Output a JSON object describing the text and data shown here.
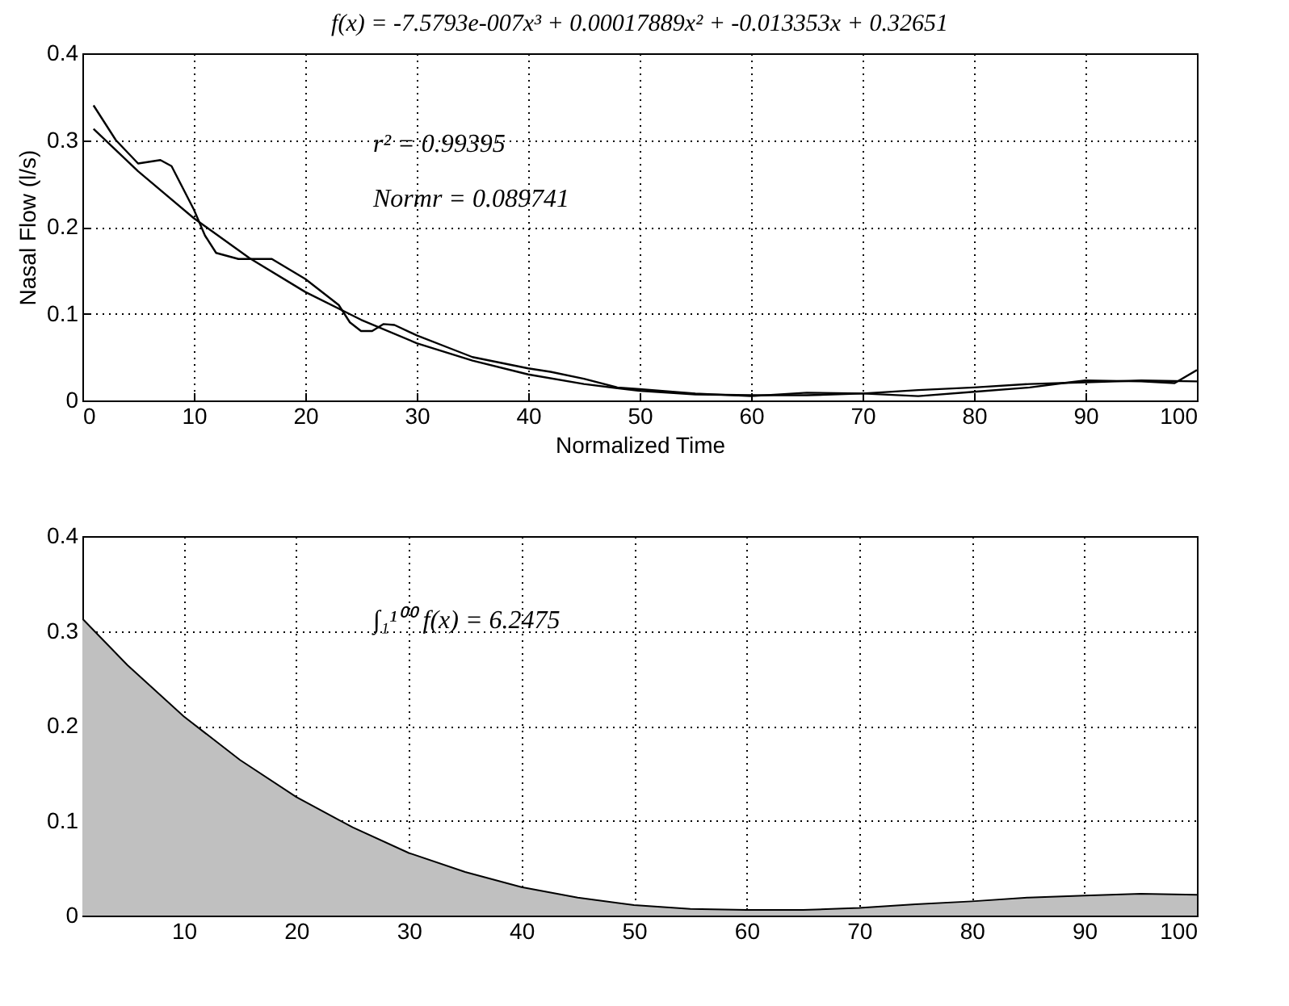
{
  "chart_data": [
    {
      "type": "line",
      "title": "f(x) = -7.5793e-007x³ + 0.00017889x² + -0.013353x + 0.32651",
      "xlabel": "Normalized Time",
      "ylabel": "Nasal Flow (l/s)",
      "xlim": [
        0,
        100
      ],
      "xticks": [
        0,
        10,
        20,
        30,
        40,
        50,
        60,
        70,
        80,
        90,
        100
      ],
      "ylim": [
        0,
        0.4
      ],
      "yticks": [
        0,
        0.1,
        0.2,
        0.3,
        0.4
      ],
      "grid": true,
      "annotations": [
        "r² = 0.99395",
        "Normr = 0.089741"
      ],
      "series": [
        {
          "color": "#000000",
          "x": [
            1,
            3,
            5,
            7,
            8,
            10,
            11,
            12,
            14,
            17,
            20,
            22,
            23,
            24,
            25,
            26,
            27,
            28,
            30,
            33,
            35,
            40,
            42,
            45,
            48,
            50,
            55,
            60,
            65,
            70,
            75,
            80,
            85,
            88,
            90,
            95,
            98,
            100
          ],
          "values": [
            0.34,
            0.3,
            0.273,
            0.277,
            0.27,
            0.22,
            0.19,
            0.17,
            0.163,
            0.163,
            0.14,
            0.12,
            0.11,
            0.09,
            0.08,
            0.08,
            0.088,
            0.087,
            0.075,
            0.06,
            0.05,
            0.037,
            0.033,
            0.025,
            0.015,
            0.013,
            0.008,
            0.005,
            0.009,
            0.008,
            0.005,
            0.01,
            0.015,
            0.02,
            0.023,
            0.022,
            0.02,
            0.035
          ]
        },
        {
          "color": "#000000",
          "x": [
            1,
            5,
            10,
            15,
            20,
            25,
            30,
            35,
            40,
            45,
            50,
            55,
            60,
            65,
            70,
            75,
            80,
            85,
            90,
            95,
            100
          ],
          "values": [
            0.313,
            0.264,
            0.21,
            0.164,
            0.125,
            0.093,
            0.066,
            0.046,
            0.03,
            0.019,
            0.011,
            0.007,
            0.006,
            0.006,
            0.008,
            0.012,
            0.015,
            0.019,
            0.021,
            0.023,
            0.022
          ]
        }
      ]
    },
    {
      "type": "area",
      "xlim": [
        1,
        100
      ],
      "xticks": [
        10,
        20,
        30,
        40,
        50,
        60,
        70,
        80,
        90,
        100
      ],
      "ylim": [
        0,
        0.4
      ],
      "yticks": [
        0,
        0.1,
        0.2,
        0.3,
        0.4
      ],
      "grid": true,
      "annotations": [
        "∫₁¹⁰⁰ f(x) = 6.2475"
      ],
      "color": "#c0c0c0",
      "x": [
        1,
        5,
        10,
        15,
        20,
        25,
        30,
        35,
        40,
        45,
        50,
        55,
        60,
        65,
        70,
        75,
        80,
        85,
        90,
        95,
        100
      ],
      "values": [
        0.313,
        0.264,
        0.21,
        0.164,
        0.125,
        0.093,
        0.066,
        0.046,
        0.03,
        0.019,
        0.011,
        0.007,
        0.006,
        0.006,
        0.008,
        0.012,
        0.015,
        0.019,
        0.021,
        0.023,
        0.022
      ]
    }
  ]
}
